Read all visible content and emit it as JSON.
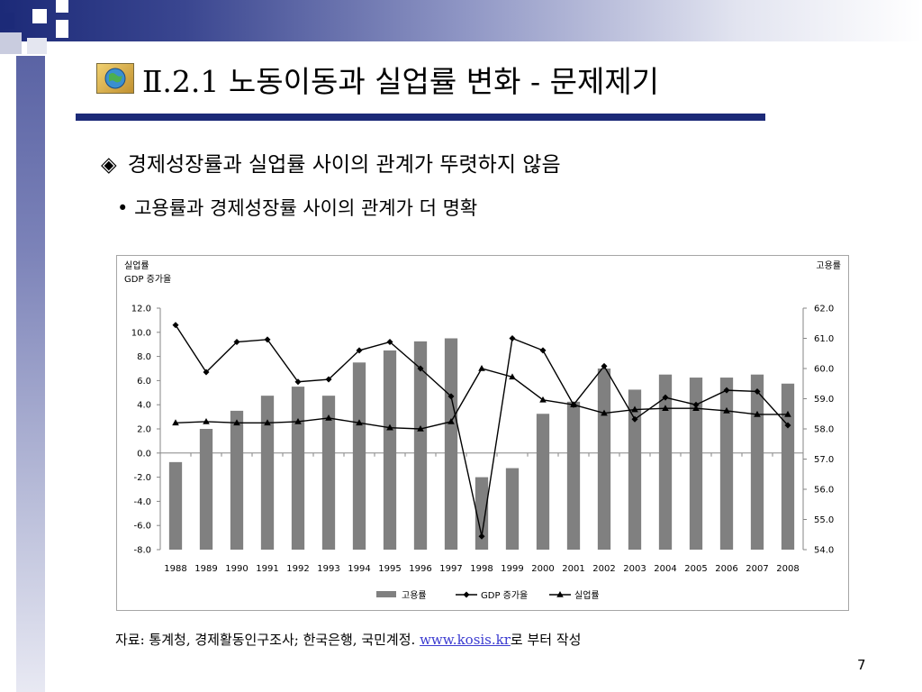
{
  "slide": {
    "title": "Ⅱ.2.1 노동이동과 실업률 변화 - 문제제기",
    "bullet_main": "경제성장률과 실업률 사이의 관계가 뚜렷하지 않음",
    "bullet_main_symbol": "◈",
    "bullet_sub": "고용률과 경제성장률 사이의 관계가 더 명확",
    "bullet_sub_symbol": "•",
    "source_prefix": "자료: 통계청, 경제활동인구조사; 한국은행, 국민계정. ",
    "source_link": "www.kosis.kr",
    "source_suffix": "로 부터 작성",
    "page_number": "7",
    "colors": {
      "header_navy": "#1c2a78",
      "bar_gray": "#808080",
      "line_black": "#000000",
      "link_blue": "#3b3bd0"
    }
  },
  "chart_data": {
    "type": "bar",
    "left_axis_label_1": "실업률",
    "left_axis_label_2": "GDP 증가율",
    "right_axis_label": "고용률",
    "categories": [
      "1988",
      "1989",
      "1990",
      "1991",
      "1992",
      "1993",
      "1994",
      "1995",
      "1996",
      "1997",
      "1998",
      "1999",
      "2000",
      "2001",
      "2002",
      "2003",
      "2004",
      "2005",
      "2006",
      "2007",
      "2008"
    ],
    "left_ylim": [
      -8,
      12
    ],
    "left_ticks": [
      "12.0",
      "10.0",
      "8.0",
      "6.0",
      "4.0",
      "2.0",
      "0.0",
      "-2.0",
      "-4.0",
      "-6.0",
      "-8.0"
    ],
    "right_ylim": [
      54,
      62
    ],
    "right_ticks": [
      "62.0",
      "61.0",
      "60.0",
      "59.0",
      "58.0",
      "57.0",
      "56.0",
      "55.0",
      "54.0"
    ],
    "grid": false,
    "legend_position": "bottom",
    "series": [
      {
        "name": "고용률",
        "kind": "bar",
        "axis": "right",
        "values": [
          56.9,
          58.0,
          58.6,
          59.1,
          59.4,
          59.1,
          60.2,
          60.6,
          60.9,
          61.0,
          56.4,
          56.7,
          58.5,
          58.9,
          60.0,
          59.3,
          59.8,
          59.7,
          59.7,
          59.8,
          59.5
        ]
      },
      {
        "name": "GDP 증가율",
        "kind": "line",
        "marker": "diamond",
        "axis": "left",
        "values": [
          10.6,
          6.7,
          9.2,
          9.4,
          5.9,
          6.1,
          8.5,
          9.2,
          7.0,
          4.7,
          -6.9,
          9.5,
          8.5,
          4.0,
          7.2,
          2.8,
          4.6,
          4.0,
          5.2,
          5.1,
          2.3
        ]
      },
      {
        "name": "실업률",
        "kind": "line",
        "marker": "triangle",
        "axis": "left",
        "values": [
          2.5,
          2.6,
          2.5,
          2.5,
          2.6,
          2.9,
          2.5,
          2.1,
          2.0,
          2.6,
          7.0,
          6.3,
          4.4,
          4.0,
          3.3,
          3.6,
          3.7,
          3.7,
          3.5,
          3.2,
          3.2
        ]
      }
    ]
  }
}
